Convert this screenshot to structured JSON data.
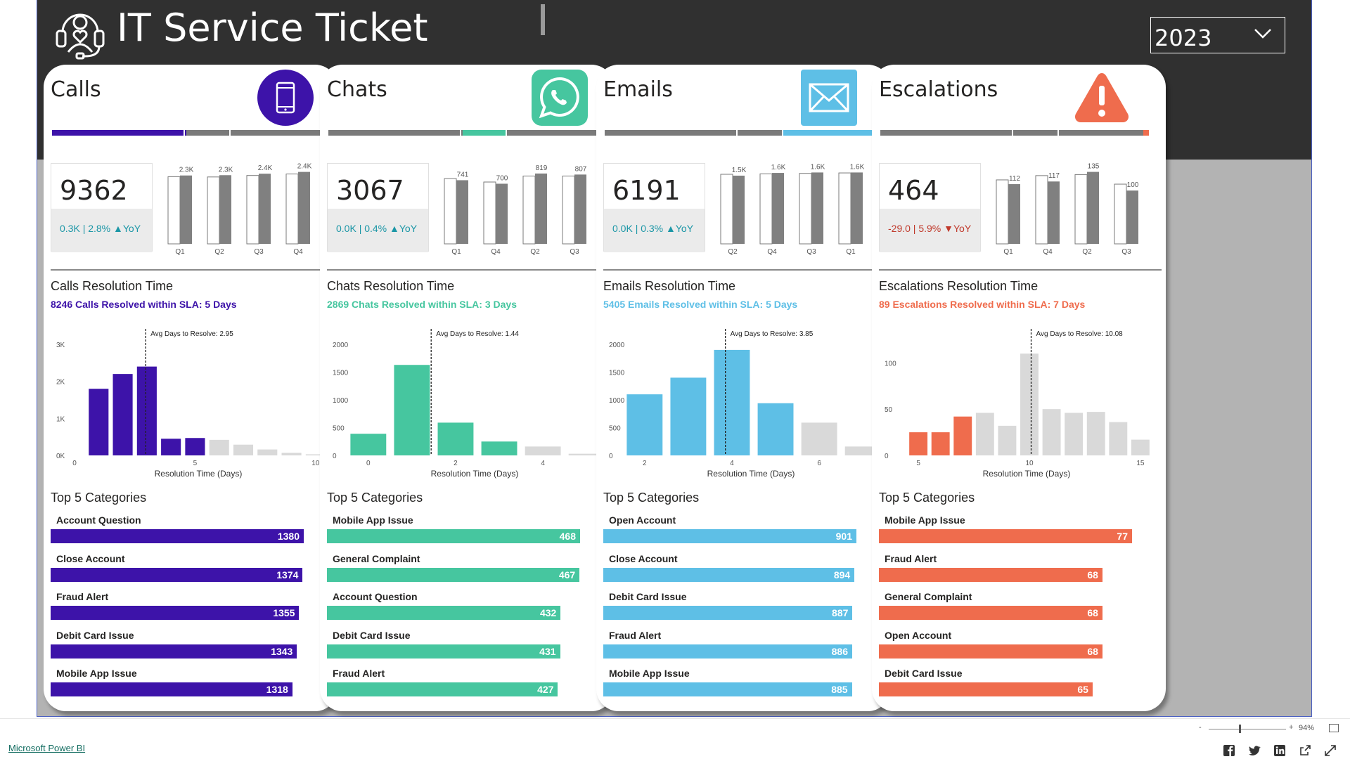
{
  "app": {
    "title": "IT Service Ticket",
    "year": "2023",
    "footer_link": "Microsoft Power BI",
    "zoom_level": "94%",
    "zoom_minus": "-",
    "zoom_plus": "+",
    "zoom_fraction": 0.4
  },
  "colors": {
    "calls": "#3d13a9",
    "chats": "#46c69f",
    "emails": "#5ebfe6",
    "escalations": "#ef6c4d",
    "gray_bar": "#808080",
    "light_gray_bar": "#d9d9d9",
    "delta_up": "#1a96a6",
    "delta_down": "#c0392b"
  },
  "cards": [
    {
      "key": "calls",
      "title": "Calls",
      "icon": "phone-icon",
      "kpi": {
        "value": "9362",
        "delta": "0.3K | 2.8% ▲YoY",
        "direction": "up"
      },
      "progress_segments": [
        0,
        0.5
      ],
      "quarters": {
        "labels": [
          "Q1",
          "Q2",
          "Q3",
          "Q4"
        ],
        "value_labels": [
          "2.3K",
          "2.3K",
          "2.4K",
          "2.4K"
        ],
        "current": [
          2300,
          2310,
          2360,
          2420
        ],
        "previous": [
          2260,
          2250,
          2300,
          2350
        ],
        "ymax": 2600
      },
      "resolution": {
        "title": "Calls Resolution Time",
        "sla": "8246 Calls Resolved within SLA: 5 Days",
        "avg_label": "Avg Days to Resolve: 2.95",
        "avg": 2.95,
        "x": [
          1,
          2,
          3,
          4,
          5,
          6,
          7,
          8,
          9,
          10
        ],
        "values": [
          1800,
          2200,
          2400,
          450,
          470,
          420,
          290,
          160,
          70,
          30
        ],
        "sla_days": 5,
        "xlim": [
          0,
          10.5
        ],
        "ylim": [
          0,
          3000
        ],
        "yticks": [
          0,
          1000,
          2000,
          3000
        ],
        "ytick_labels": [
          "0K",
          "1K",
          "2K",
          "3K"
        ],
        "xticks": [
          0,
          5,
          10
        ],
        "xtick_labels": [
          "0",
          "5",
          "10"
        ],
        "xlabel": "Resolution Time (Days)"
      },
      "categories_title": "Top 5 Categories",
      "categories": [
        {
          "label": "Account Question",
          "value": "1380",
          "n": 1380
        },
        {
          "label": "Close Account",
          "value": "1374",
          "n": 1374
        },
        {
          "label": "Fraud Alert",
          "value": "1355",
          "n": 1355
        },
        {
          "label": "Debit Card Issue",
          "value": "1343",
          "n": 1343
        },
        {
          "label": "Mobile App Issue",
          "value": "1318",
          "n": 1318
        }
      ]
    },
    {
      "key": "chats",
      "title": "Chats",
      "icon": "whatsapp-icon",
      "kpi": {
        "value": "3067",
        "delta": "0.0K | 0.4% ▲YoY",
        "direction": "up"
      },
      "progress_segments": [
        0.5,
        0.66
      ],
      "quarters": {
        "labels": [
          "Q1",
          "Q4",
          "Q2",
          "Q3"
        ],
        "value_labels": [
          "741",
          "700",
          "819",
          "807"
        ],
        "current": [
          741,
          700,
          819,
          807
        ],
        "previous": [
          760,
          720,
          790,
          790
        ],
        "ymax": 900
      },
      "resolution": {
        "title": "Chats Resolution Time",
        "sla": "2869 Chats Resolved within SLA: 3 Days",
        "avg_label": "Avg Days to Resolve: 1.44",
        "avg": 1.44,
        "x": [
          0,
          1,
          2,
          3,
          4,
          5
        ],
        "values": [
          390,
          1630,
          590,
          250,
          160,
          30
        ],
        "sla_days": 3,
        "xlim": [
          -0.4,
          5.4
        ],
        "ylim": [
          0,
          2000
        ],
        "yticks": [
          0,
          500,
          1000,
          1500,
          2000
        ],
        "ytick_labels": [
          "0",
          "500",
          "1000",
          "1500",
          "2000"
        ],
        "xticks": [
          0,
          2,
          4
        ],
        "xtick_labels": [
          "0",
          "2",
          "4"
        ],
        "xlabel": "Resolution Time (Days)"
      },
      "categories_title": "Top 5 Categories",
      "categories": [
        {
          "label": "Mobile App Issue",
          "value": "468",
          "n": 468
        },
        {
          "label": "General Complaint",
          "value": "467",
          "n": 467
        },
        {
          "label": "Account Question",
          "value": "432",
          "n": 432
        },
        {
          "label": "Debit Card Issue",
          "value": "431",
          "n": 431
        },
        {
          "label": "Fraud Alert",
          "value": "427",
          "n": 427
        }
      ]
    },
    {
      "key": "emails",
      "title": "Emails",
      "icon": "envelope-icon",
      "kpi": {
        "value": "6191",
        "delta": "0.0K | 0.3% ▲YoY",
        "direction": "up"
      },
      "progress_segments": [
        0.66,
        1.0
      ],
      "quarters": {
        "labels": [
          "Q2",
          "Q4",
          "Q3",
          "Q1"
        ],
        "value_labels": [
          "1.5K",
          "1.6K",
          "1.6K",
          "1.6K"
        ],
        "current": [
          1500,
          1560,
          1570,
          1570
        ],
        "previous": [
          1530,
          1540,
          1550,
          1560
        ],
        "ymax": 1700
      },
      "resolution": {
        "title": "Emails Resolution Time",
        "sla": "5405 Emails Resolved within SLA: 5 Days",
        "avg_label": "Avg Days to Resolve: 3.85",
        "avg": 3.85,
        "x": [
          2,
          3,
          4,
          5,
          6,
          7
        ],
        "values": [
          1100,
          1400,
          1900,
          940,
          590,
          160
        ],
        "sla_days": 5,
        "xlim": [
          1.6,
          7.4
        ],
        "ylim": [
          0,
          2000
        ],
        "yticks": [
          0,
          500,
          1000,
          1500,
          2000
        ],
        "ytick_labels": [
          "0",
          "500",
          "1000",
          "1500",
          "2000"
        ],
        "xticks": [
          2,
          4,
          6
        ],
        "xtick_labels": [
          "2",
          "4",
          "6"
        ],
        "xlabel": "Resolution Time (Days)"
      },
      "categories_title": "Top 5 Categories",
      "categories": [
        {
          "label": "Open Account",
          "value": "901",
          "n": 901
        },
        {
          "label": "Close Account",
          "value": "894",
          "n": 894
        },
        {
          "label": "Debit Card Issue",
          "value": "887",
          "n": 887
        },
        {
          "label": "Fraud Alert",
          "value": "886",
          "n": 886
        },
        {
          "label": "Mobile App Issue",
          "value": "885",
          "n": 885
        }
      ]
    },
    {
      "key": "escalations",
      "title": "Escalations",
      "icon": "warning-icon",
      "kpi": {
        "value": "464",
        "delta": "-29.0 | 5.9% ▼YoY",
        "direction": "down"
      },
      "progress_segments": [
        0.98,
        1.0
      ],
      "quarters": {
        "labels": [
          "Q1",
          "Q4",
          "Q2",
          "Q3"
        ],
        "value_labels": [
          "112",
          "117",
          "135",
          "100"
        ],
        "current": [
          112,
          117,
          135,
          100
        ],
        "previous": [
          120,
          128,
          130,
          112
        ],
        "ymax": 145
      },
      "resolution": {
        "title": "Escalations Resolution Time",
        "sla": "89 Escalations Resolved within SLA: 7 Days",
        "avg_label": "Avg Days to Resolve: 10.08",
        "avg": 10.08,
        "x": [
          5,
          6,
          7,
          8,
          9,
          10,
          11,
          12,
          13,
          14,
          15
        ],
        "values": [
          25,
          25,
          42,
          46,
          32,
          110,
          50,
          46,
          47,
          36,
          17
        ],
        "sla_days": 7,
        "xlim": [
          4.3,
          15.7
        ],
        "ylim": [
          0,
          120
        ],
        "yticks": [
          0,
          50,
          100
        ],
        "ytick_labels": [
          "0",
          "50",
          "100"
        ],
        "xticks": [
          5,
          10,
          15
        ],
        "xtick_labels": [
          "5",
          "10",
          "15"
        ],
        "xlabel": "Resolution Time (Days)"
      },
      "categories_title": "Top 5 Categories",
      "categories": [
        {
          "label": "Mobile App Issue",
          "value": "77",
          "n": 77
        },
        {
          "label": "Fraud Alert",
          "value": "68",
          "n": 68
        },
        {
          "label": "General Complaint",
          "value": "68",
          "n": 68
        },
        {
          "label": "Open Account",
          "value": "68",
          "n": 68
        },
        {
          "label": "Debit Card Issue",
          "value": "65",
          "n": 65
        }
      ]
    }
  ],
  "share_icons": [
    "facebook-icon",
    "twitter-icon",
    "linkedin-icon",
    "share-icon",
    "fullscreen-icon"
  ]
}
